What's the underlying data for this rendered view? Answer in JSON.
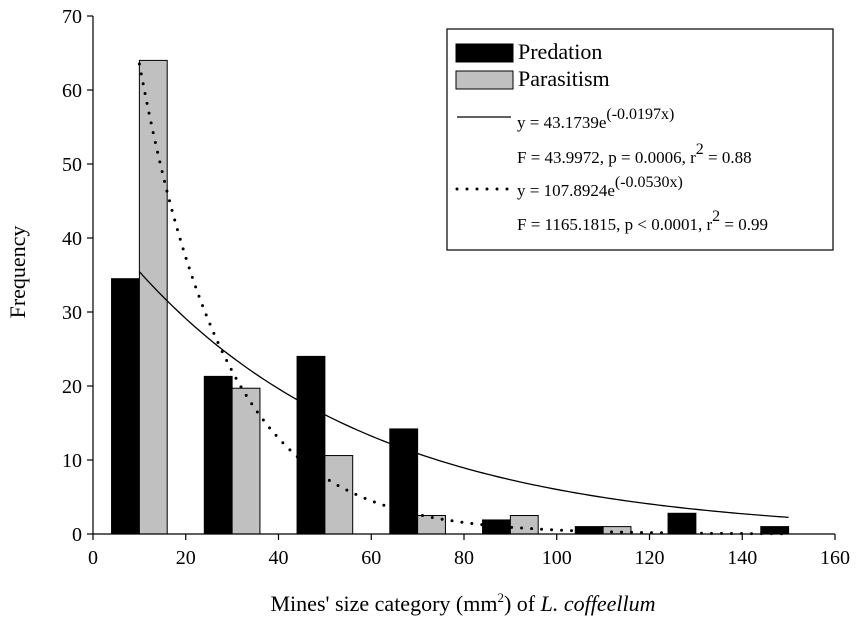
{
  "chart_data": {
    "type": "bar",
    "title": "",
    "xlabel_parts": {
      "main": "Mines' size category (mm",
      "sup": "2",
      "mid": ") of ",
      "italic": "L. coffeellum"
    },
    "ylabel": "Frequency",
    "xlim": [
      0,
      160
    ],
    "ylim": [
      0,
      70
    ],
    "xticks": [
      0,
      20,
      40,
      60,
      80,
      100,
      120,
      140,
      160
    ],
    "yticks": [
      0,
      10,
      20,
      30,
      40,
      50,
      60,
      70
    ],
    "categories": [
      10,
      30,
      50,
      70,
      90,
      110,
      130,
      150
    ],
    "series": [
      {
        "name": "Predation",
        "color": "#000000",
        "values": [
          34.5,
          21.3,
          24.0,
          14.2,
          1.9,
          1.0,
          2.8,
          1.0
        ]
      },
      {
        "name": "Parasitism",
        "color": "#c0c0c0",
        "values": [
          64.0,
          19.7,
          10.6,
          2.5,
          2.5,
          1.0,
          0.0,
          0.0
        ]
      }
    ],
    "fits": [
      {
        "style": "solid",
        "a": 43.1739,
        "b": -0.0197,
        "x_range": [
          10,
          150
        ],
        "equation": {
          "base": "y = 43.1739e",
          "exp": "(-0.0197x)"
        },
        "stats": {
          "pre": "F = 43.9972, p = 0.0006, r",
          "sup": "2",
          "post": " = 0.88"
        }
      },
      {
        "style": "dotted",
        "a": 107.8924,
        "b": -0.053,
        "x_range": [
          10,
          150
        ],
        "equation": {
          "base": "y = 107.8924e",
          "exp": "(-0.0530x)"
        },
        "stats": {
          "pre": "F = 1165.1815, p < 0.0001, r",
          "sup": "2",
          "post": " = 0.99"
        }
      }
    ],
    "legend_position": "top-right",
    "grid": false
  }
}
